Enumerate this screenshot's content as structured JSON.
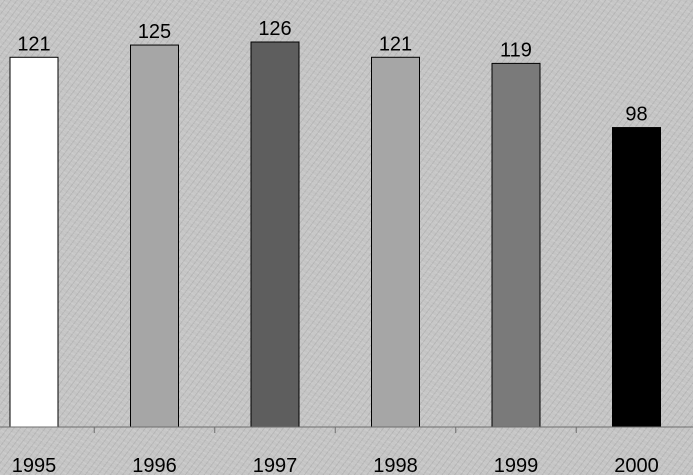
{
  "chart_data": {
    "type": "bar",
    "categories": [
      "1995",
      "1996",
      "1997",
      "1998",
      "1999",
      "2000"
    ],
    "values": [
      121,
      125,
      126,
      121,
      119,
      98
    ],
    "bar_colors": [
      "#ffffff",
      "#a6a6a6",
      "#5e5e5e",
      "#a6a6a6",
      "#7a7a7a",
      "#000000"
    ],
    "title": "",
    "xlabel": "",
    "ylabel": "",
    "ylim": [
      0,
      126
    ],
    "grid": false,
    "legend": "none"
  }
}
